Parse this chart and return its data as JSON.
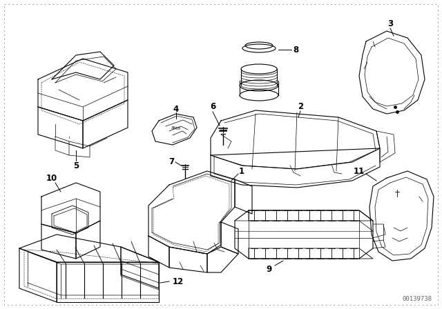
{
  "background_color": "#ffffff",
  "watermark": "00139738",
  "watermark_color": "#666666",
  "fig_width": 6.4,
  "fig_height": 4.48,
  "dpi": 100,
  "label_fontsize": 8.5,
  "label_color": "#000000",
  "line_color": "#000000",
  "line_width": 0.8
}
